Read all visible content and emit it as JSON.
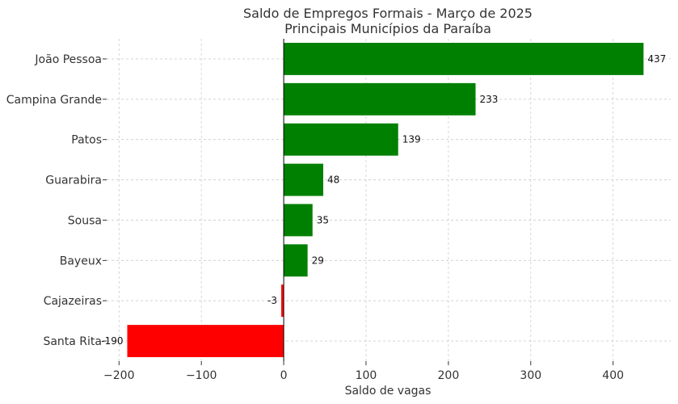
{
  "chart_data": {
    "type": "bar",
    "orientation": "horizontal",
    "title": "Saldo de Empregos Formais - Março de 2025",
    "subtitle": "Principais Municípios da Paraíba",
    "xlabel": "Saldo de vagas",
    "ylabel": "",
    "categories": [
      "João Pessoa",
      "Campina Grande",
      "Patos",
      "Guarabira",
      "Sousa",
      "Bayeux",
      "Cajazeiras",
      "Santa Rita"
    ],
    "values": [
      437,
      233,
      139,
      48,
      35,
      29,
      -3,
      -190
    ],
    "data_labels": [
      "437",
      "233",
      "139",
      "48",
      "35",
      "29",
      "-3",
      "-190"
    ],
    "xlim": [
      -215,
      470
    ],
    "xticks": [
      -200,
      -100,
      0,
      100,
      200,
      300,
      400
    ],
    "xtick_labels": [
      "−200",
      "−100",
      "0",
      "100",
      "200",
      "300",
      "400"
    ],
    "grid": true,
    "colors": {
      "positive": "#008000",
      "negative": "#ff0000",
      "zero_line": "#000000"
    }
  }
}
